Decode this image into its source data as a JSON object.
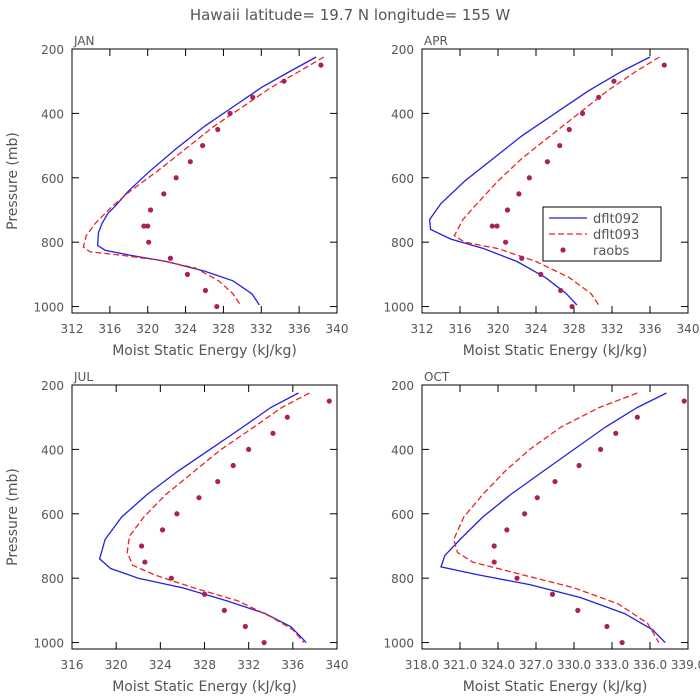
{
  "title": "Hawaii  latitude= 19.7 N longitude= 155 W",
  "colors": {
    "model1": "#2222dd",
    "model2": "#ee2222",
    "obs": "#aa2255"
  },
  "chart_data": [
    {
      "type": "line",
      "panel_label": "JAN",
      "xlabel": "Moist Static Energy (kJ/kg)",
      "ylabel": "Pressure (mb)",
      "xlim": [
        312,
        340
      ],
      "ylim": [
        200,
        1020
      ],
      "xticks": [
        312,
        316,
        320,
        324,
        328,
        332,
        336,
        340
      ],
      "xtick_labels": [
        "312",
        "316",
        "320",
        "324",
        "328",
        "332",
        "336",
        "340"
      ],
      "yticks": [
        200,
        400,
        600,
        800,
        1000
      ],
      "series": [
        {
          "name": "dflt092",
          "style": "solid",
          "x": [
            337.8,
            335,
            332,
            329,
            326,
            323,
            320.2,
            318,
            316.5,
            315.8,
            315.2,
            314.8,
            314.7,
            315.5,
            318,
            322,
            326,
            329,
            331,
            331.8
          ],
          "y": [
            225,
            270,
            320,
            380,
            440,
            510,
            580,
            640,
            690,
            710,
            740,
            770,
            810,
            825,
            840,
            860,
            890,
            920,
            960,
            995
          ]
        },
        {
          "name": "dflt093",
          "style": "dashed",
          "x": [
            338.6,
            336,
            333,
            330,
            327,
            324,
            321,
            318.2,
            316.2,
            314.5,
            313.5,
            313.2,
            313.9,
            317,
            321,
            325,
            327.5,
            329,
            329.8
          ],
          "y": [
            225,
            270,
            320,
            380,
            440,
            510,
            580,
            640,
            690,
            740,
            780,
            815,
            830,
            840,
            855,
            880,
            920,
            960,
            995
          ]
        },
        {
          "name": "raobs",
          "style": "points",
          "x": [
            338.3,
            334.4,
            331.1,
            328.7,
            327.4,
            325.8,
            324.5,
            323.0,
            321.7,
            320.3,
            320.0,
            319.6,
            320.1,
            322.4,
            324.2,
            326.1,
            327.3
          ],
          "y": [
            250,
            300,
            350,
            400,
            450,
            500,
            550,
            600,
            650,
            700,
            750,
            750,
            800,
            850,
            900,
            950,
            1000
          ]
        }
      ]
    },
    {
      "type": "line",
      "panel_label": "APR",
      "xlabel": "Moist Static Energy (kJ/kg)",
      "ylabel": "",
      "xlim": [
        312,
        340
      ],
      "ylim": [
        200,
        1020
      ],
      "xticks": [
        312,
        316,
        320,
        324,
        328,
        332,
        336,
        340
      ],
      "xtick_labels": [
        "312",
        "316",
        "320",
        "324",
        "328",
        "332",
        "336",
        "340"
      ],
      "yticks": [
        200,
        400,
        600,
        800,
        1000
      ],
      "legend": {
        "position": "right-middle"
      },
      "series": [
        {
          "name": "dflt092",
          "style": "solid",
          "x": [
            336,
            333,
            329.5,
            326,
            322.5,
            319.5,
            316.5,
            314,
            312.8,
            312.9,
            315,
            318.5,
            322,
            325,
            327.2,
            328.3
          ],
          "y": [
            225,
            270,
            330,
            400,
            470,
            540,
            610,
            680,
            730,
            760,
            790,
            820,
            860,
            910,
            960,
            995
          ]
        },
        {
          "name": "dflt093",
          "style": "dashed",
          "x": [
            337,
            334.5,
            331.5,
            328.5,
            325.5,
            322.5,
            320,
            317.8,
            316.3,
            315.4,
            316.5,
            320,
            324,
            327.5,
            329.8,
            330.6
          ],
          "y": [
            225,
            270,
            330,
            400,
            470,
            540,
            610,
            680,
            730,
            780,
            800,
            820,
            860,
            910,
            960,
            995
          ]
        },
        {
          "name": "raobs",
          "style": "points",
          "x": [
            337.5,
            332.2,
            330.6,
            328.9,
            327.5,
            326.5,
            325.2,
            323.3,
            322.2,
            321.0,
            319.9,
            319.4,
            320.8,
            322.5,
            324.5,
            326.6,
            327.8
          ],
          "y": [
            250,
            300,
            350,
            400,
            450,
            500,
            550,
            600,
            650,
            700,
            750,
            750,
            800,
            850,
            900,
            950,
            1000
          ]
        }
      ]
    },
    {
      "type": "line",
      "panel_label": "JUL",
      "xlabel": "Moist Static Energy (kJ/kg)",
      "ylabel": "Pressure (mb)",
      "xlim": [
        316,
        340
      ],
      "ylim": [
        200,
        1020
      ],
      "xticks": [
        316,
        320,
        324,
        328,
        332,
        336,
        340
      ],
      "xtick_labels": [
        "316",
        "320",
        "324",
        "328",
        "332",
        "336",
        "340"
      ],
      "yticks": [
        200,
        400,
        600,
        800,
        1000
      ],
      "series": [
        {
          "name": "dflt092",
          "style": "solid",
          "x": [
            336.5,
            334,
            331.5,
            328.5,
            325.5,
            322.8,
            320.5,
            319,
            318.5,
            319.5,
            322,
            326,
            330,
            333.5,
            335.8,
            336.8,
            337.2
          ],
          "y": [
            225,
            270,
            330,
            400,
            470,
            540,
            610,
            680,
            740,
            770,
            800,
            830,
            870,
            910,
            950,
            985,
            1000
          ]
        },
        {
          "name": "dflt093",
          "style": "dashed",
          "x": [
            337.5,
            335,
            332.5,
            329.5,
            327,
            324.5,
            322.5,
            321.2,
            321,
            321.5,
            323.5,
            327,
            331,
            334,
            336,
            337
          ],
          "y": [
            225,
            270,
            330,
            400,
            470,
            540,
            610,
            670,
            720,
            760,
            790,
            830,
            870,
            920,
            960,
            1000
          ]
        },
        {
          "name": "raobs",
          "style": "points",
          "x": [
            339.3,
            335.5,
            334.2,
            332.0,
            330.6,
            329.2,
            327.5,
            325.5,
            324.2,
            322.3,
            322.6,
            325.0,
            328.0,
            329.8,
            331.7,
            333.4
          ],
          "y": [
            250,
            300,
            350,
            400,
            450,
            500,
            550,
            600,
            650,
            700,
            750,
            800,
            850,
            900,
            950,
            1000
          ]
        }
      ]
    },
    {
      "type": "line",
      "panel_label": "OCT",
      "xlabel": "Moist Static Energy (kJ/kg)",
      "ylabel": "",
      "xlim": [
        318,
        339
      ],
      "ylim": [
        200,
        1020
      ],
      "xticks": [
        318,
        321,
        324,
        327,
        330,
        333,
        336,
        339
      ],
      "xtick_labels": [
        "318.0",
        "321.0",
        "324.0",
        "327.0",
        "330.0",
        "333.0",
        "336.0",
        "339.0"
      ],
      "yticks": [
        200,
        400,
        600,
        800,
        1000
      ],
      "series": [
        {
          "name": "dflt092",
          "style": "solid",
          "x": [
            337.3,
            335,
            332.5,
            330,
            327.5,
            325,
            322.8,
            321,
            319.8,
            319.5,
            322.5,
            326.5,
            330.5,
            334,
            336.2,
            337.2
          ],
          "y": [
            225,
            270,
            330,
            400,
            470,
            540,
            610,
            680,
            730,
            765,
            790,
            820,
            860,
            910,
            960,
            1000
          ]
        },
        {
          "name": "dflt093",
          "style": "dashed",
          "x": [
            335,
            332,
            329,
            326.5,
            324.5,
            322.8,
            321.3,
            320.5,
            320.8,
            322,
            326,
            330,
            333.5,
            335.8,
            336.7
          ],
          "y": [
            225,
            270,
            330,
            400,
            470,
            540,
            610,
            680,
            720,
            750,
            790,
            830,
            880,
            940,
            1000
          ]
        },
        {
          "name": "raobs",
          "style": "points",
          "x": [
            338.7,
            335.0,
            333.3,
            332.1,
            330.4,
            328.5,
            327.1,
            326.1,
            324.7,
            323.7,
            323.7,
            325.5,
            328.3,
            330.3,
            332.6,
            333.8
          ],
          "y": [
            250,
            300,
            350,
            400,
            450,
            500,
            550,
            600,
            650,
            700,
            750,
            800,
            850,
            900,
            950,
            1000
          ]
        }
      ]
    }
  ]
}
